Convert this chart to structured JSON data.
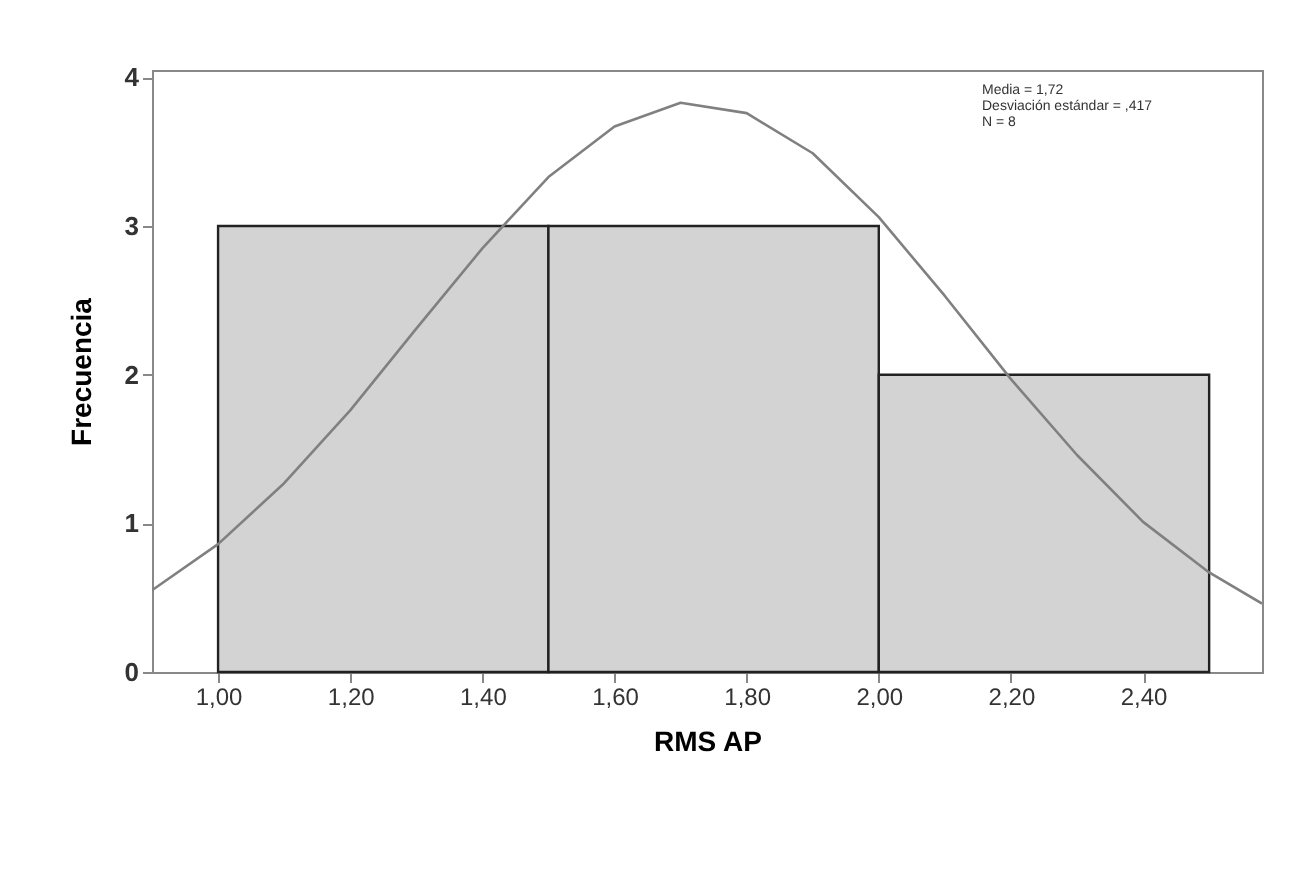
{
  "chart_data": {
    "type": "histogram",
    "xlabel": "RMS AP",
    "ylabel": "Frecuencia",
    "bins": [
      1.0,
      1.5,
      2.0,
      2.5
    ],
    "values": [
      3,
      3,
      2
    ],
    "color": "#d3d3d3",
    "series": [
      {
        "type": "line",
        "color": "#808080",
        "x": [
          0.9,
          1.0,
          1.1,
          1.2,
          1.3,
          1.4,
          1.5,
          1.6,
          1.7,
          1.8,
          1.9,
          2.0,
          2.1,
          2.2,
          2.3,
          2.4,
          2.5,
          2.58
        ],
        "values": [
          0.55,
          0.86,
          1.27,
          1.76,
          2.31,
          2.85,
          3.33,
          3.67,
          3.83,
          3.76,
          3.49,
          3.06,
          2.53,
          1.97,
          1.46,
          1.01,
          0.67,
          0.46
        ]
      }
    ],
    "xlim": [
      0.9,
      2.58
    ],
    "ylim": [
      0,
      4.05
    ],
    "xticks": [
      {
        "value": 1.0,
        "label": "1,00"
      },
      {
        "value": 1.2,
        "label": "1,20"
      },
      {
        "value": 1.4,
        "label": "1,40"
      },
      {
        "value": 1.6,
        "label": "1,60"
      },
      {
        "value": 1.8,
        "label": "1,80"
      },
      {
        "value": 2.0,
        "label": "2,00"
      },
      {
        "value": 2.2,
        "label": "2,20"
      },
      {
        "value": 2.4,
        "label": "2,40"
      }
    ],
    "yticks": [
      0,
      1,
      2,
      3,
      4
    ],
    "annotations": [
      "Media = 1,72",
      "Desviación estándar = ,417",
      "N = 8"
    ],
    "grid": false
  }
}
